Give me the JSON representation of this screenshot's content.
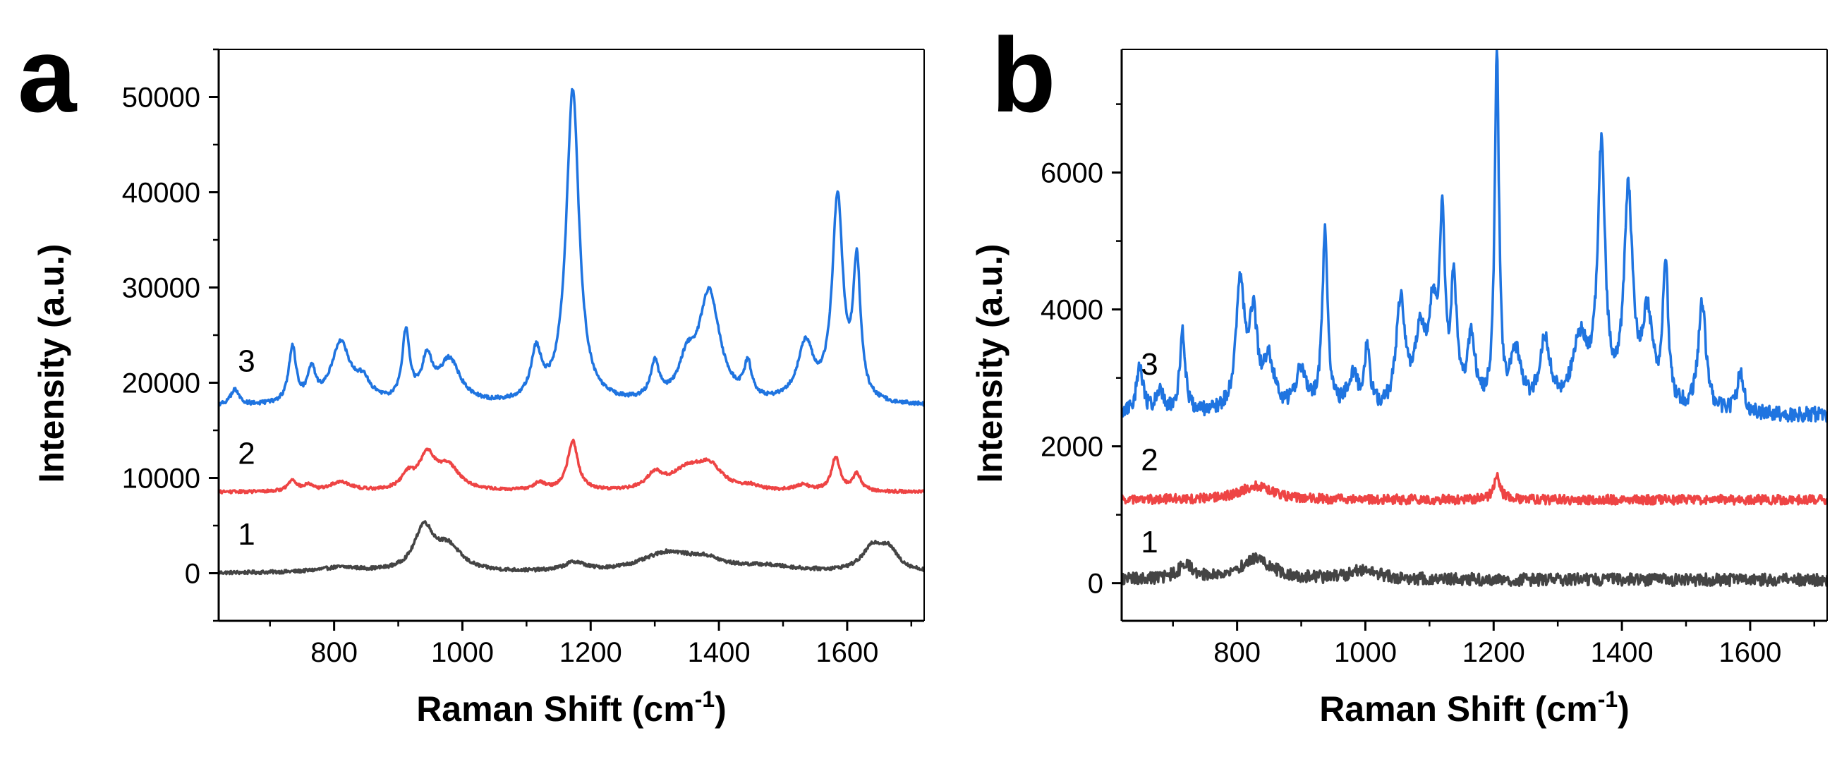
{
  "chart_data": [
    {
      "type": "line",
      "panel_label": "a",
      "xlabel": "Raman Shift (cm",
      "xlabel_sup": "-1",
      "xlabel_end": ")",
      "ylabel": "Intensity (a.u.)",
      "xlim": [
        620,
        1720
      ],
      "ylim": [
        -5000,
        55000
      ],
      "xticks": [
        800,
        1000,
        1200,
        1400,
        1600
      ],
      "xtick_labels": [
        "800",
        "1000",
        "1200",
        "1400",
        "1600"
      ],
      "yticks": [
        0,
        10000,
        20000,
        30000,
        40000,
        50000
      ],
      "ytick_labels": [
        "0",
        "10000",
        "20000",
        "30000",
        "40000",
        "50000"
      ],
      "series": [
        {
          "name": "1",
          "label": "1",
          "color": "#444444",
          "baseline": 0,
          "noise": 180,
          "label_x": 650,
          "label_y": 3000,
          "peaks": [
            [
              810,
              500,
              40
            ],
            [
              940,
              4500,
              18
            ],
            [
              978,
              2500,
              25
            ],
            [
              1175,
              900,
              20
            ],
            [
              1320,
              2000,
              50
            ],
            [
              1380,
              900,
              30
            ],
            [
              1470,
              600,
              60
            ],
            [
              1640,
              2400,
              20
            ],
            [
              1665,
              2000,
              18
            ]
          ]
        },
        {
          "name": "2",
          "label": "2",
          "color": "#ee4444",
          "baseline": 8500,
          "noise": 150,
          "label_x": 650,
          "label_y": 11500,
          "peaks": [
            [
              735,
              1200,
              8
            ],
            [
              760,
              600,
              8
            ],
            [
              810,
              1000,
              20
            ],
            [
              915,
              1500,
              12
            ],
            [
              945,
              3500,
              15
            ],
            [
              978,
              2500,
              22
            ],
            [
              1120,
              800,
              12
            ],
            [
              1172,
              5200,
              10
            ],
            [
              1300,
              1600,
              15
            ],
            [
              1350,
              2000,
              30
            ],
            [
              1385,
              2400,
              25
            ],
            [
              1450,
              400,
              15
            ],
            [
              1530,
              600,
              15
            ],
            [
              1582,
              3500,
              8
            ],
            [
              1615,
              1800,
              8
            ]
          ]
        },
        {
          "name": "3",
          "label": "3",
          "color": "#1f74e0",
          "baseline": 17500,
          "noise": 200,
          "label_x": 650,
          "label_y": 21200,
          "peaks": [
            [
              645,
              1600,
              8
            ],
            [
              735,
              5800,
              7
            ],
            [
              765,
              3300,
              7
            ],
            [
              810,
              6300,
              18
            ],
            [
              845,
              2000,
              15
            ],
            [
              912,
              7200,
              7
            ],
            [
              945,
              4300,
              10
            ],
            [
              980,
              4500,
              20
            ],
            [
              1115,
              5000,
              10
            ],
            [
              1172,
              33000,
              12
            ],
            [
              1300,
              3800,
              8
            ],
            [
              1350,
              3500,
              15
            ],
            [
              1385,
              11500,
              20
            ],
            [
              1445,
              3500,
              7
            ],
            [
              1535,
              6000,
              15
            ],
            [
              1585,
              21200,
              10
            ],
            [
              1615,
              14000,
              7
            ]
          ]
        }
      ]
    },
    {
      "type": "line",
      "panel_label": "b",
      "xlabel": "Raman Shift (cm",
      "xlabel_sup": "-1",
      "xlabel_end": ")",
      "ylabel": "Intensity (a.u.)",
      "xlim": [
        620,
        1720
      ],
      "ylim": [
        -550,
        7800
      ],
      "xticks": [
        800,
        1000,
        1200,
        1400,
        1600
      ],
      "xtick_labels": [
        "800",
        "1000",
        "1200",
        "1400",
        "1600"
      ],
      "yticks": [
        0,
        2000,
        4000,
        6000
      ],
      "ytick_labels": [
        "0",
        "2000",
        "4000",
        "6000"
      ],
      "series": [
        {
          "name": "1",
          "label": "1",
          "color": "#444444",
          "baseline": 50,
          "noise": 90,
          "label_x": 650,
          "label_y": 450,
          "peaks": [
            [
              720,
              200,
              15
            ],
            [
              830,
              300,
              30
            ],
            [
              1000,
              150,
              25
            ]
          ]
        },
        {
          "name": "2",
          "label": "2",
          "color": "#ee4444",
          "baseline": 1220,
          "noise": 70,
          "label_x": 650,
          "label_y": 1650,
          "peaks": [
            [
              830,
              200,
              30
            ],
            [
              1205,
              350,
              6
            ]
          ]
        },
        {
          "name": "3",
          "label": "3",
          "color": "#1f74e0",
          "baseline": 2450,
          "noise": 110,
          "label_x": 650,
          "label_y": 3050,
          "peaks": [
            [
              648,
              700,
              6
            ],
            [
              680,
              300,
              8
            ],
            [
              715,
              1200,
              5
            ],
            [
              805,
              1800,
              8
            ],
            [
              825,
              1300,
              8
            ],
            [
              850,
              700,
              10
            ],
            [
              900,
              600,
              10
            ],
            [
              937,
              2600,
              5
            ],
            [
              980,
              500,
              10
            ],
            [
              1003,
              900,
              5
            ],
            [
              1055,
              1600,
              8
            ],
            [
              1085,
              1000,
              10
            ],
            [
              1105,
              1300,
              8
            ],
            [
              1120,
              2600,
              5
            ],
            [
              1138,
              1800,
              5
            ],
            [
              1165,
              1000,
              8
            ],
            [
              1205,
              5200,
              4
            ],
            [
              1235,
              800,
              10
            ],
            [
              1280,
              1000,
              10
            ],
            [
              1335,
              1000,
              15
            ],
            [
              1368,
              3700,
              7
            ],
            [
              1410,
              3100,
              8
            ],
            [
              1440,
              1300,
              10
            ],
            [
              1468,
              2100,
              5
            ],
            [
              1525,
              1600,
              7
            ],
            [
              1585,
              600,
              6
            ]
          ]
        }
      ]
    }
  ]
}
